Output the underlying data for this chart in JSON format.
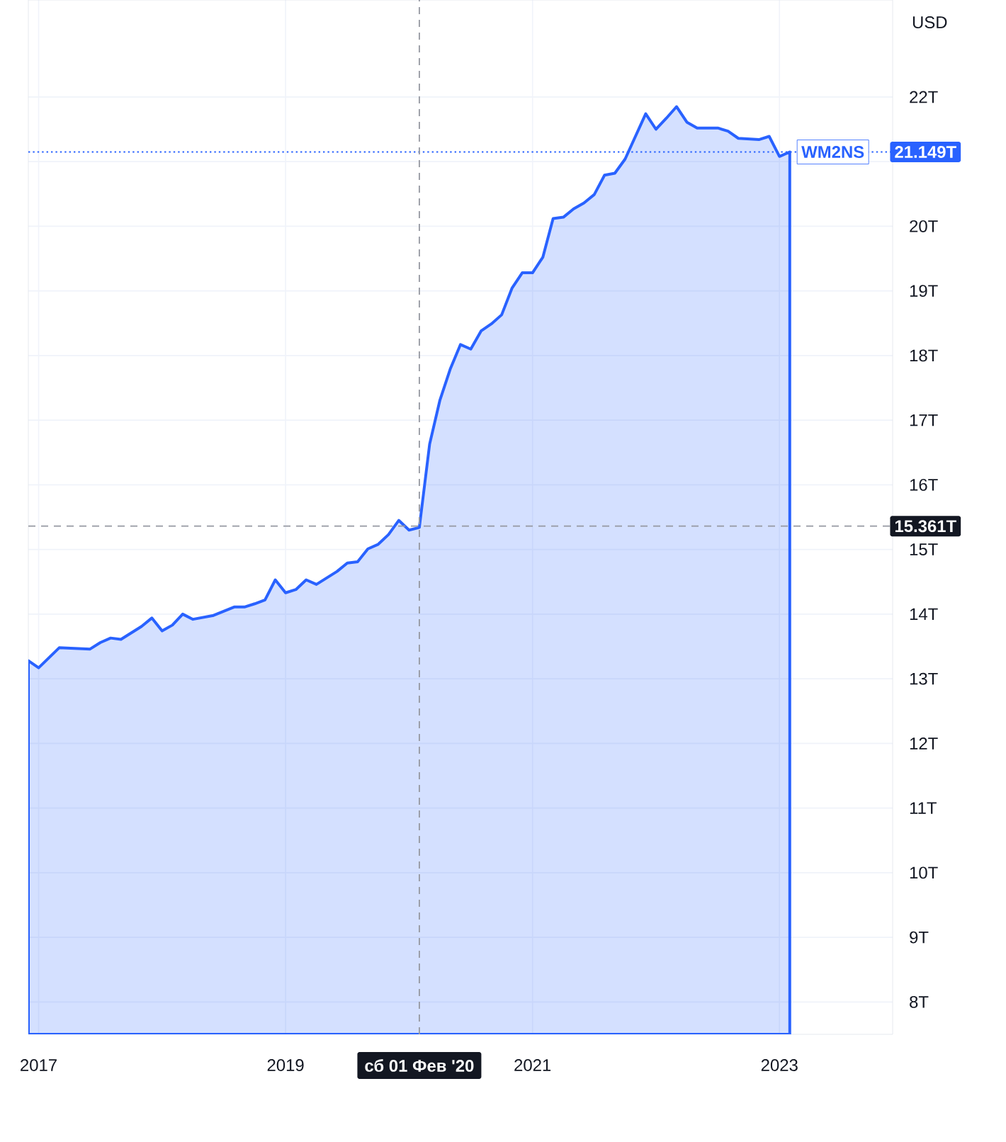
{
  "chart_data": {
    "type": "area",
    "ylabel": "USD",
    "x": [
      "2016-12",
      "2017-01",
      "2017-03",
      "2017-06",
      "2017-07",
      "2017-08",
      "2017-09",
      "2017-11",
      "2017-12",
      "2018-01",
      "2018-02",
      "2018-03",
      "2018-04",
      "2018-06",
      "2018-08",
      "2018-09",
      "2018-10",
      "2018-11",
      "2018-12",
      "2019-01",
      "2019-02",
      "2019-03",
      "2019-04",
      "2019-06",
      "2019-07",
      "2019-08",
      "2019-09",
      "2019-10",
      "2019-11",
      "2019-12",
      "2020-01",
      "2020-02",
      "2020-03",
      "2020-04",
      "2020-05",
      "2020-06",
      "2020-07",
      "2020-08",
      "2020-09",
      "2020-10",
      "2020-11",
      "2020-12",
      "2021-01",
      "2021-02",
      "2021-03",
      "2021-04",
      "2021-05",
      "2021-06",
      "2021-07",
      "2021-08",
      "2021-09",
      "2021-10",
      "2021-12",
      "2022-01",
      "2022-02",
      "2022-03",
      "2022-04",
      "2022-05",
      "2022-07",
      "2022-08",
      "2022-09",
      "2022-11",
      "2022-12",
      "2023-01",
      "2023-02"
    ],
    "series": [
      {
        "name": "WM2NS",
        "color": "#2962ff",
        "values": [
          13.28,
          13.17,
          13.48,
          13.46,
          13.56,
          13.63,
          13.61,
          13.81,
          13.94,
          13.74,
          13.83,
          14.0,
          13.92,
          13.98,
          14.11,
          14.11,
          14.16,
          14.22,
          14.53,
          14.33,
          14.38,
          14.53,
          14.46,
          14.66,
          14.79,
          14.81,
          15.01,
          15.08,
          15.23,
          15.45,
          15.3,
          15.34,
          16.63,
          17.31,
          17.79,
          18.17,
          18.1,
          18.38,
          18.49,
          18.63,
          19.04,
          19.28,
          19.28,
          19.52,
          20.12,
          20.14,
          20.27,
          20.36,
          20.49,
          20.79,
          20.82,
          21.04,
          21.74,
          21.5,
          21.67,
          21.85,
          21.61,
          21.52,
          21.52,
          21.47,
          21.36,
          21.34,
          21.39,
          21.08,
          21.149
        ]
      }
    ],
    "xlim": [
      "2016-12",
      "2023-12"
    ],
    "xticks": [
      "2017",
      "2019",
      "2021",
      "2023"
    ],
    "ylim": [
      7.5,
      23.5
    ],
    "yticks": [
      {
        "value": 8,
        "label": "8T"
      },
      {
        "value": 9,
        "label": "9T"
      },
      {
        "value": 10,
        "label": "10T"
      },
      {
        "value": 11,
        "label": "11T"
      },
      {
        "value": 12,
        "label": "12T"
      },
      {
        "value": 13,
        "label": "13T"
      },
      {
        "value": 14,
        "label": "14T"
      },
      {
        "value": 15,
        "label": "15T"
      },
      {
        "value": 16,
        "label": "16T"
      },
      {
        "value": 17,
        "label": "17T"
      },
      {
        "value": 18,
        "label": "18T"
      },
      {
        "value": 19,
        "label": "19T"
      },
      {
        "value": 20,
        "label": "20T"
      },
      {
        "value": 21,
        "label": null
      },
      {
        "value": 22,
        "label": "22T"
      }
    ],
    "grid": true,
    "ref_lines": [
      {
        "axis": "y",
        "value": 21.149,
        "label": "21.149T",
        "color": "#2962ff",
        "line_style": "dotted"
      },
      {
        "axis": "y",
        "value": 15.361,
        "label": "15.361T",
        "color": "#9598a1",
        "line_style": "dashed"
      },
      {
        "axis": "x",
        "value": "2020-02-01",
        "label": "сб 01 Фев '20",
        "color": "#9598a1",
        "line_style": "dashed"
      }
    ]
  }
}
